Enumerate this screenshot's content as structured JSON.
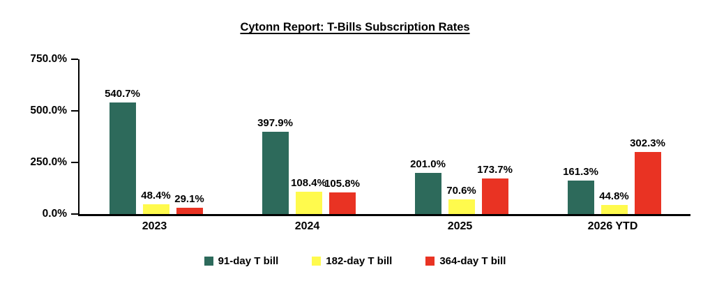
{
  "page": {
    "background": "#ffffff",
    "text_color": "#000000",
    "axis_color": "#000000"
  },
  "chart_data": {
    "type": "bar",
    "title": "Cytonn Report: T-Bills Subscription Rates",
    "categories": [
      "2023",
      "2024",
      "2025",
      "2026 YTD"
    ],
    "series": [
      {
        "name": "91-day T bill",
        "color": "#2D6A5B",
        "values": [
          540.7,
          397.9,
          201.0,
          161.3
        ]
      },
      {
        "name": "182-day T bill",
        "color": "#FFFA4D",
        "values": [
          48.4,
          108.4,
          70.6,
          44.8
        ]
      },
      {
        "name": "364-day T bill",
        "color": "#E93323",
        "values": [
          29.1,
          105.8,
          173.7,
          302.3
        ]
      }
    ],
    "value_label_suffix": "%",
    "ylim": [
      0,
      750
    ],
    "ytick_step": 250,
    "ytick_labels_top_to_bottom": [
      "750.0%",
      "500.0%",
      "250.0%",
      "0.0%"
    ],
    "grid": false,
    "legend_position": "bottom"
  }
}
